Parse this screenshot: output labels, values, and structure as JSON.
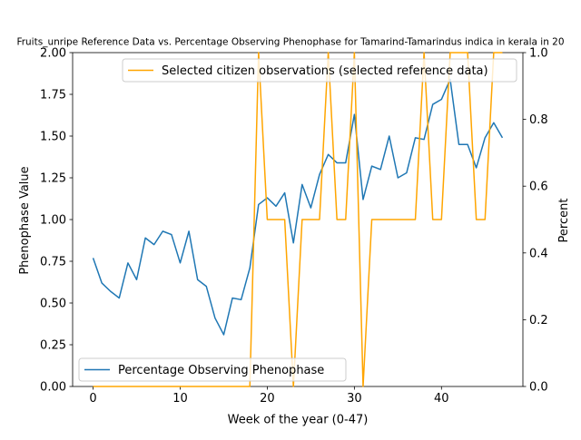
{
  "chart_data": {
    "type": "line",
    "title": "Fruits_unripe Reference Data vs. Percentage Observing Phenophase for Tamarind-Tamarindus indica in kerala in 20",
    "xlabel": "Week of the year (0-47)",
    "ylabel_left": "Phenophase Value",
    "ylabel_right": "Percent",
    "xlim": [
      -2.35,
      49.35
    ],
    "ylim_left": [
      0,
      2.0
    ],
    "ylim_right": [
      0,
      1.0
    ],
    "x_ticks": [
      0,
      10,
      20,
      30,
      40
    ],
    "y_ticks_left": [
      "0.00",
      "0.25",
      "0.50",
      "0.75",
      "1.00",
      "1.25",
      "1.50",
      "1.75",
      "2.00"
    ],
    "y_ticks_right": [
      "0.0",
      "0.2",
      "0.4",
      "0.6",
      "0.8",
      "1.0"
    ],
    "legend_left": "lower-left",
    "legend_right": "top-right",
    "series": [
      {
        "name": "Percentage Observing Phenophase",
        "axis": "left",
        "color": "#1f77b4",
        "x": [
          0,
          1,
          2,
          3,
          4,
          5,
          6,
          7,
          8,
          9,
          10,
          11,
          12,
          13,
          14,
          15,
          16,
          17,
          18,
          19,
          20,
          21,
          22,
          23,
          24,
          25,
          26,
          27,
          28,
          29,
          30,
          31,
          32,
          33,
          34,
          35,
          36,
          37,
          38,
          39,
          40,
          41,
          42,
          43,
          44,
          45,
          46,
          47
        ],
        "values": [
          0.77,
          0.62,
          0.57,
          0.53,
          0.74,
          0.64,
          0.89,
          0.85,
          0.93,
          0.91,
          0.74,
          0.93,
          0.64,
          0.6,
          0.41,
          0.31,
          0.53,
          0.52,
          0.71,
          1.09,
          1.13,
          1.08,
          1.16,
          0.86,
          1.21,
          1.07,
          1.27,
          1.39,
          1.34,
          1.34,
          1.63,
          1.12,
          1.32,
          1.3,
          1.5,
          1.25,
          1.28,
          1.49,
          1.48,
          1.69,
          1.72,
          1.84,
          1.45,
          1.45,
          1.31,
          1.49,
          1.58,
          1.49
        ]
      },
      {
        "name": "Selected citizen observations (selected reference data)",
        "axis": "right",
        "color": "#ffa500",
        "x": [
          0,
          1,
          2,
          3,
          4,
          5,
          6,
          7,
          8,
          9,
          10,
          11,
          12,
          13,
          14,
          15,
          16,
          17,
          18,
          19,
          20,
          21,
          22,
          23,
          24,
          25,
          26,
          27,
          28,
          29,
          30,
          31,
          32,
          33,
          34,
          35,
          36,
          37,
          38,
          39,
          40,
          41,
          42,
          43,
          44,
          45,
          46,
          47
        ],
        "values": [
          0,
          0,
          0,
          0,
          0,
          0,
          0,
          0,
          0,
          0,
          0,
          0,
          0,
          0,
          0,
          0,
          0,
          0,
          0,
          1,
          0.5,
          0.5,
          0.5,
          0,
          0.5,
          0.5,
          0.5,
          1,
          0.5,
          0.5,
          1,
          0,
          0.5,
          0.5,
          0.5,
          0.5,
          0.5,
          0.5,
          1,
          0.5,
          0.5,
          1,
          1,
          1,
          0.5,
          0.5,
          1,
          1
        ]
      }
    ]
  }
}
